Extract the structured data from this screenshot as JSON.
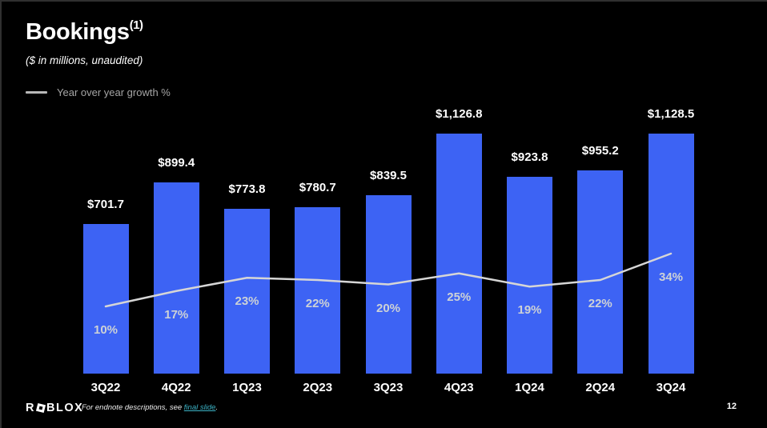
{
  "slide": {
    "title": "Bookings",
    "title_superscript": "(1)",
    "subtitle": "($ in millions, unaudited)",
    "legend_label": "Year over year growth %",
    "footnote_prefix": "For endnote descriptions, see ",
    "footnote_link": "final slide",
    "footnote_suffix": ".",
    "page_number": "12"
  },
  "brand": {
    "logo_text_left": "R",
    "logo_square_icon": "tilted-square-icon",
    "logo_text_right": "BLOX"
  },
  "colors": {
    "background": "#000000",
    "bar": "#3d63f4",
    "growth_line": "#d6d6d6",
    "growth_label": "#cdd2d6",
    "value_label": "#ffffff",
    "link": "#3cb4c7"
  },
  "chart_data": {
    "type": "bar",
    "title": "Bookings",
    "subtitle": "($ in millions, unaudited)",
    "categories": [
      "3Q22",
      "4Q22",
      "1Q23",
      "2Q23",
      "3Q23",
      "4Q23",
      "1Q24",
      "2Q24",
      "3Q24"
    ],
    "series": [
      {
        "name": "Bookings ($ millions)",
        "type": "bar",
        "values": [
          701.7,
          899.4,
          773.8,
          780.7,
          839.5,
          1126.8,
          923.8,
          955.2,
          1128.5
        ],
        "labels": [
          "$701.7",
          "$899.4",
          "$773.8",
          "$780.7",
          "$839.5",
          "$1,126.8",
          "$923.8",
          "$955.2",
          "$1,128.5"
        ]
      },
      {
        "name": "Year over year growth %",
        "type": "line",
        "values": [
          10,
          17,
          23,
          22,
          20,
          25,
          19,
          22,
          34
        ],
        "labels": [
          "10%",
          "17%",
          "23%",
          "22%",
          "20%",
          "25%",
          "19%",
          "22%",
          "34%"
        ]
      }
    ],
    "ylim": [
      0,
      1200
    ],
    "grid": false,
    "legend_position": "top-left",
    "value_labels_shown": true
  }
}
